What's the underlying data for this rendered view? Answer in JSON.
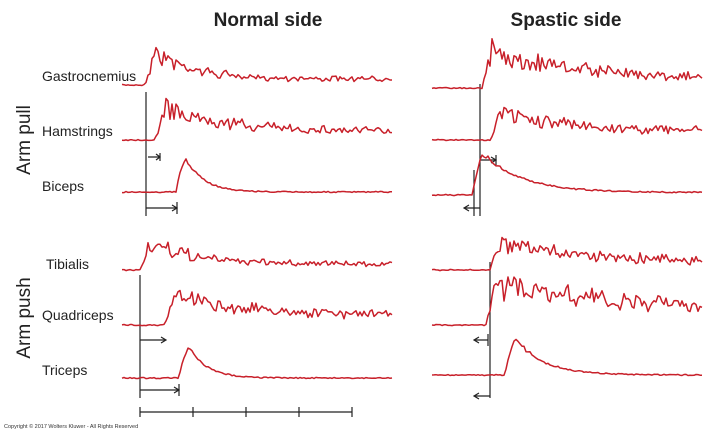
{
  "header": {
    "normal": "Normal side",
    "spastic": "Spastic side"
  },
  "groups": {
    "pull": "Arm pull",
    "push": "Arm push"
  },
  "muscles": [
    "Gastrocnemius",
    "Hamstrings",
    "Biceps",
    "Tibialis",
    "Quadriceps",
    "Triceps"
  ],
  "footer": "Copyright © 2017 Wolters Kluwer - All Rights Reserved"
}
